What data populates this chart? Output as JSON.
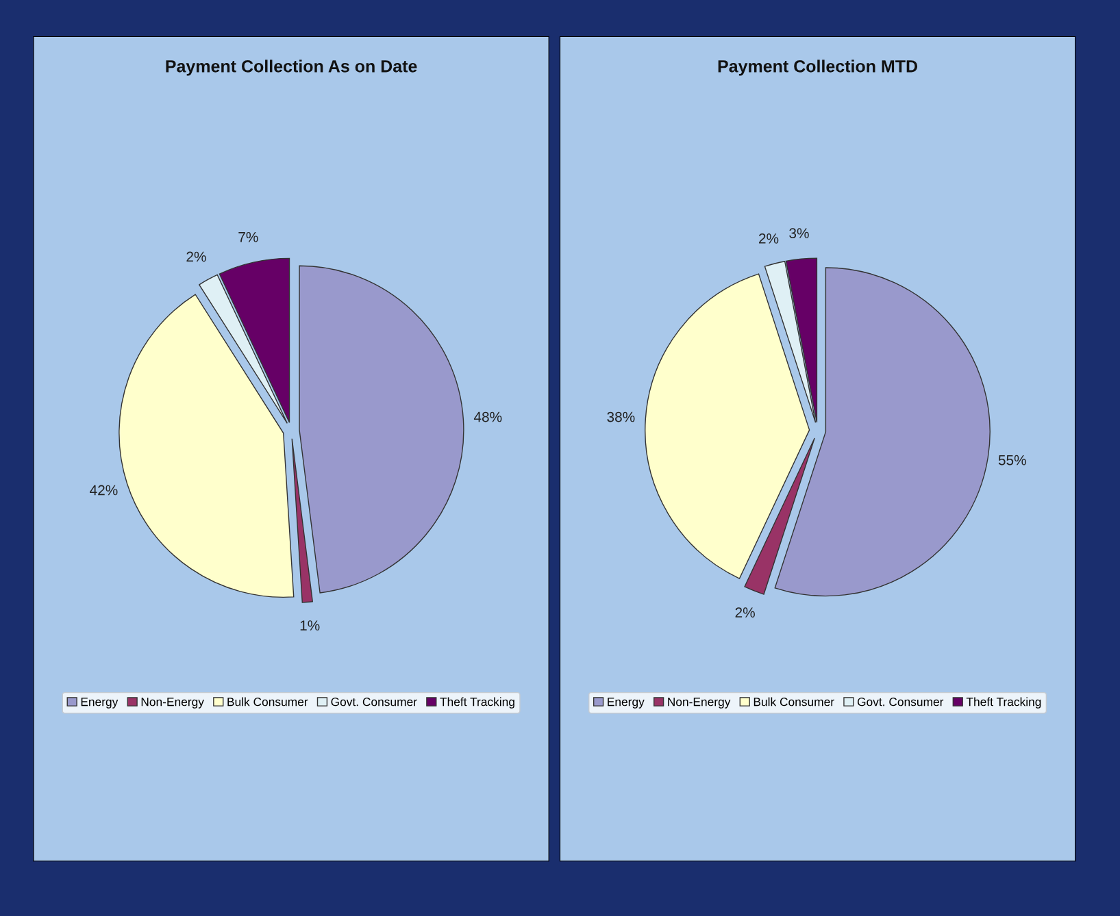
{
  "chart_data": [
    {
      "type": "pie",
      "title": "Payment Collection As on Date",
      "categories": [
        "Energy",
        "Non-Energy",
        "Bulk Consumer",
        "Govt. Consumer",
        "Theft Tracking"
      ],
      "values": [
        48,
        1,
        42,
        2,
        7
      ],
      "value_labels": [
        "48%",
        "1%",
        "42%",
        "2%",
        "7%"
      ],
      "colors": [
        "#9999cc",
        "#993366",
        "#ffffcc",
        "#dff0f5",
        "#660066"
      ],
      "legend": "bottom"
    },
    {
      "type": "pie",
      "title": "Payment Collection MTD",
      "categories": [
        "Energy",
        "Non-Energy",
        "Bulk Consumer",
        "Govt. Consumer",
        "Theft Tracking"
      ],
      "values": [
        55,
        2,
        38,
        2,
        3
      ],
      "value_labels": [
        "55%",
        "2%",
        "38%",
        "2%",
        "3%"
      ],
      "colors": [
        "#9999cc",
        "#993366",
        "#ffffcc",
        "#dff0f5",
        "#660066"
      ],
      "legend": "bottom"
    }
  ]
}
